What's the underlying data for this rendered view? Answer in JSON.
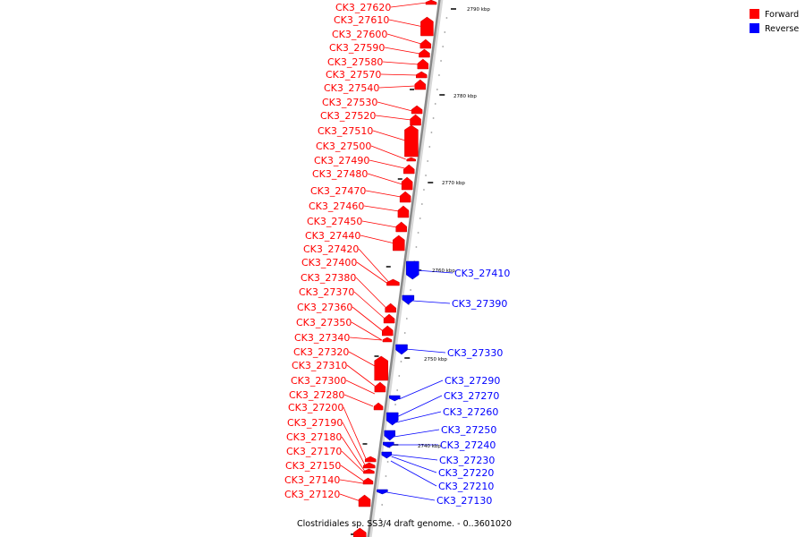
{
  "caption": "Clostridiales sp. SS3/4 draft genome. - 0..3601020",
  "legend": [
    {
      "label": "Forward",
      "color": "#ff0000"
    },
    {
      "label": "Reverse",
      "color": "#0000ff"
    }
  ],
  "colors": {
    "forward": "#ff0000",
    "reverse": "#0000ff",
    "backbone": "#888888"
  },
  "ticks": [
    "2790 kbp",
    "2780 kbp",
    "2770 kbp",
    "2760 kbp",
    "2750 kbp",
    "2740 kbp"
  ],
  "genes_forward": [
    "CK3_27620",
    "CK3_27610",
    "CK3_27600",
    "CK3_27590",
    "CK3_27580",
    "CK3_27570",
    "CK3_27540",
    "CK3_27530",
    "CK3_27520",
    "CK3_27510",
    "CK3_27500",
    "CK3_27490",
    "CK3_27480",
    "CK3_27470",
    "CK3_27460",
    "CK3_27450",
    "CK3_27440",
    "CK3_27420",
    "CK3_27400",
    "CK3_27380",
    "CK3_27370",
    "CK3_27360",
    "CK3_27350",
    "CK3_27340",
    "CK3_27320",
    "CK3_27310",
    "CK3_27300",
    "CK3_27280",
    "CK3_27200",
    "CK3_27190",
    "CK3_27180",
    "CK3_27170",
    "CK3_27150",
    "CK3_27140",
    "CK3_27120"
  ],
  "genes_reverse": [
    "CK3_27410",
    "CK3_27390",
    "CK3_27330",
    "CK3_27290",
    "CK3_27270",
    "CK3_27260",
    "CK3_27250",
    "CK3_27240",
    "CK3_27230",
    "CK3_27220",
    "CK3_27210",
    "CK3_27130"
  ]
}
